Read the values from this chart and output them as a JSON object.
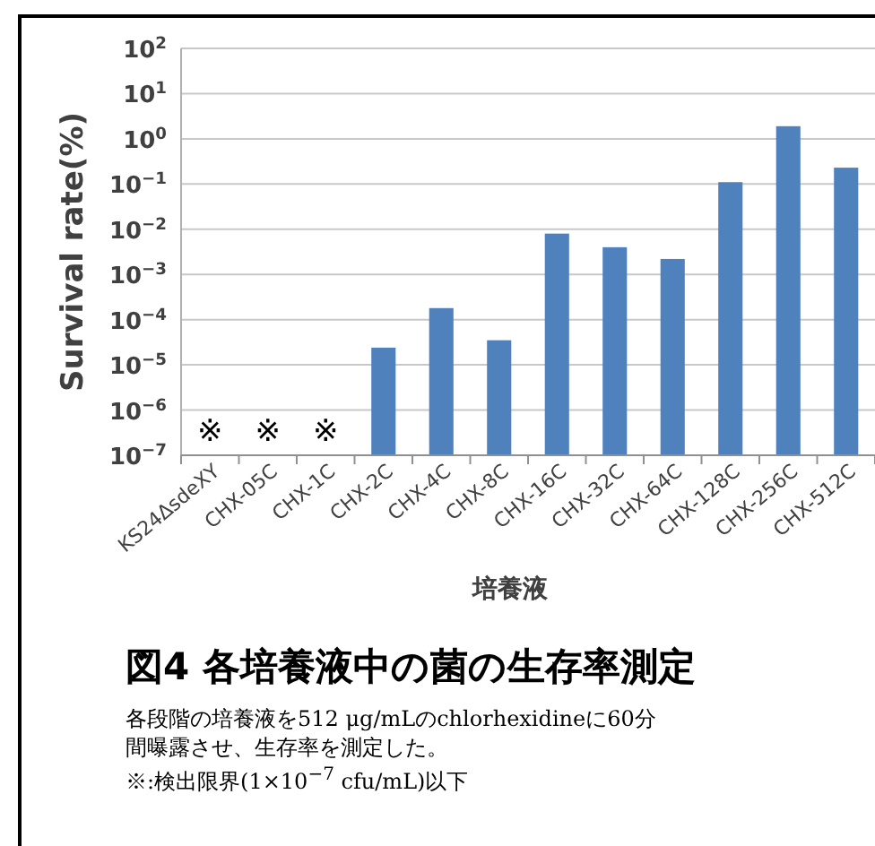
{
  "chart_data": {
    "type": "bar",
    "title": "図4 各培養液中の菌の生存率測定",
    "xlabel": "培養液",
    "ylabel": "Survival rate(%)",
    "categories": [
      "KS24ΔsdeXY",
      "CHX-05C",
      "CHX-1C",
      "CHX-2C",
      "CHX-4C",
      "CHX-8C",
      "CHX-16C",
      "CHX-32C",
      "CHX-64C",
      "CHX-128C",
      "CHX-256C",
      "CHX-512C"
    ],
    "values": [
      null,
      null,
      null,
      2.4e-05,
      0.00018,
      3.5e-05,
      0.008,
      0.004,
      0.0022,
      0.11,
      1.9,
      0.23
    ],
    "color": "#4f81bd",
    "log": true,
    "ylim": [
      1e-07,
      100
    ],
    "yticks": [
      {
        "value": 100,
        "label": "10$^{2}$"
      },
      {
        "value": 10,
        "label": "10$^{1}$"
      },
      {
        "value": 1,
        "label": "10$^{0}$"
      },
      {
        "value": 0.1,
        "label": "10$^{−1}$"
      },
      {
        "value": 0.01,
        "label": "10$^{−2}$"
      },
      {
        "value": 0.001,
        "label": "10$^{−3}$"
      },
      {
        "value": 0.0001,
        "label": "10$^{−4}$"
      },
      {
        "value": 1e-05,
        "label": "10$^{−5}$"
      },
      {
        "value": 1e-06,
        "label": "10$^{−6}$"
      },
      {
        "value": 1e-07,
        "label": "10$^{−7}$"
      }
    ],
    "grid": "y",
    "annotations": [
      "※",
      "※",
      "※",
      "各段階の培養液を512 μg/mLのchlorhexidineに60分間曝露させ、生存率を測定した。",
      "※:検出限界(1×10$^{−7}$ cfu/mL)以下"
    ]
  }
}
